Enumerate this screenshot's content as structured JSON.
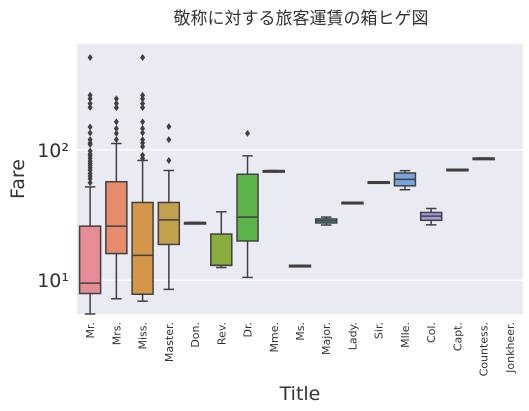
{
  "chart_data": {
    "type": "box",
    "title": "敬称に対する旅客運賃の箱ヒゲ図",
    "xlabel": "Title",
    "ylabel": "Fare",
    "yscale": "log",
    "ylim": [
      5.5,
      650
    ],
    "y_ticks": [
      {
        "value": 10,
        "label": "10¹"
      },
      {
        "value": 100,
        "label": "10²"
      }
    ],
    "categories": [
      "Mr.",
      "Mrs.",
      "Miss.",
      "Master.",
      "Don.",
      "Rev.",
      "Dr.",
      "Mme.",
      "Ms.",
      "Major.",
      "Lady.",
      "Sir.",
      "Mlle.",
      "Col.",
      "Capt.",
      "Countess.",
      "Jonkheer."
    ],
    "boxes": [
      {
        "name": "Mr.",
        "color": "#e68c97",
        "min": 5.5,
        "q1": 7.9,
        "median": 9.5,
        "q3": 26,
        "max": 52,
        "outliers": [
          56,
          60,
          63,
          66,
          70,
          73,
          76,
          79,
          82,
          86,
          90,
          93,
          98,
          110,
          113,
          120,
          135,
          150,
          212,
          227,
          247,
          263,
          512
        ]
      },
      {
        "name": "Mrs.",
        "color": "#e68c6c",
        "min": 7.2,
        "q1": 16,
        "median": 26,
        "q3": 57,
        "max": 112,
        "outliers": [
          120,
          134,
          146,
          164,
          211,
          227,
          247
        ]
      },
      {
        "name": "Miss.",
        "color": "#d49648",
        "min": 6.9,
        "q1": 7.8,
        "median": 15.5,
        "q3": 39.5,
        "max": 83,
        "outliers": [
          86,
          91,
          106,
          113,
          120,
          135,
          146,
          164,
          211,
          227,
          247,
          263,
          512
        ]
      },
      {
        "name": "Master.",
        "color": "#c1a04e",
        "min": 8.5,
        "q1": 18.8,
        "median": 29,
        "q3": 39.5,
        "max": 69.5,
        "outliers": [
          83,
          120,
          151
        ]
      },
      {
        "name": "Don.",
        "color": "#a7ab48",
        "min": 27.7,
        "q1": 27.7,
        "median": 27.7,
        "q3": 27.7,
        "max": 27.7,
        "outliers": []
      },
      {
        "name": "Rev.",
        "color": "#88ad3e",
        "min": 12.5,
        "q1": 13,
        "median": 13,
        "q3": 22.6,
        "max": 33.5,
        "outliers": []
      },
      {
        "name": "Dr.",
        "color": "#5cb44a",
        "min": 10.5,
        "q1": 20,
        "median": 30.5,
        "q3": 65,
        "max": 90,
        "outliers": [
          134
        ]
      },
      {
        "name": "Mme.",
        "color": "#4ab47f",
        "min": 69.3,
        "q1": 69.3,
        "median": 69.3,
        "q3": 69.3,
        "max": 69.3,
        "outliers": []
      },
      {
        "name": "Ms.",
        "color": "#47b29c",
        "min": 13,
        "q1": 13,
        "median": 13,
        "q3": 13,
        "max": 13,
        "outliers": []
      },
      {
        "name": "Major.",
        "color": "#46b1ad",
        "min": 26.5,
        "q1": 27.5,
        "median": 28.5,
        "q3": 29.5,
        "max": 30.5,
        "outliers": []
      },
      {
        "name": "Lady.",
        "color": "#49afbd",
        "min": 39.6,
        "q1": 39.6,
        "median": 39.6,
        "q3": 39.6,
        "max": 39.6,
        "outliers": []
      },
      {
        "name": "Sir.",
        "color": "#4dadd1",
        "min": 56.9,
        "q1": 56.9,
        "median": 56.9,
        "q3": 56.9,
        "max": 56.9,
        "outliers": []
      },
      {
        "name": "Mlle.",
        "color": "#7aa5dc",
        "min": 49.5,
        "q1": 53,
        "median": 59.4,
        "q3": 66.5,
        "max": 69.3,
        "outliers": []
      },
      {
        "name": "Col.",
        "color": "#a896e0",
        "min": 26.6,
        "q1": 28.8,
        "median": 31,
        "q3": 33.1,
        "max": 35.5,
        "outliers": []
      },
      {
        "name": "Capt.",
        "color": "#cc88d8",
        "min": 71,
        "q1": 71,
        "median": 71,
        "q3": 71,
        "max": 71,
        "outliers": []
      },
      {
        "name": "Countess.",
        "color": "#e07fc5",
        "min": 86.5,
        "q1": 86.5,
        "median": 86.5,
        "q3": 86.5,
        "max": 86.5,
        "outliers": []
      },
      {
        "name": "Jonkheer.",
        "color": "#e886b0",
        "min": null,
        "q1": null,
        "median": null,
        "q3": null,
        "max": null,
        "outliers": []
      }
    ],
    "grid": true,
    "legend": "none"
  }
}
